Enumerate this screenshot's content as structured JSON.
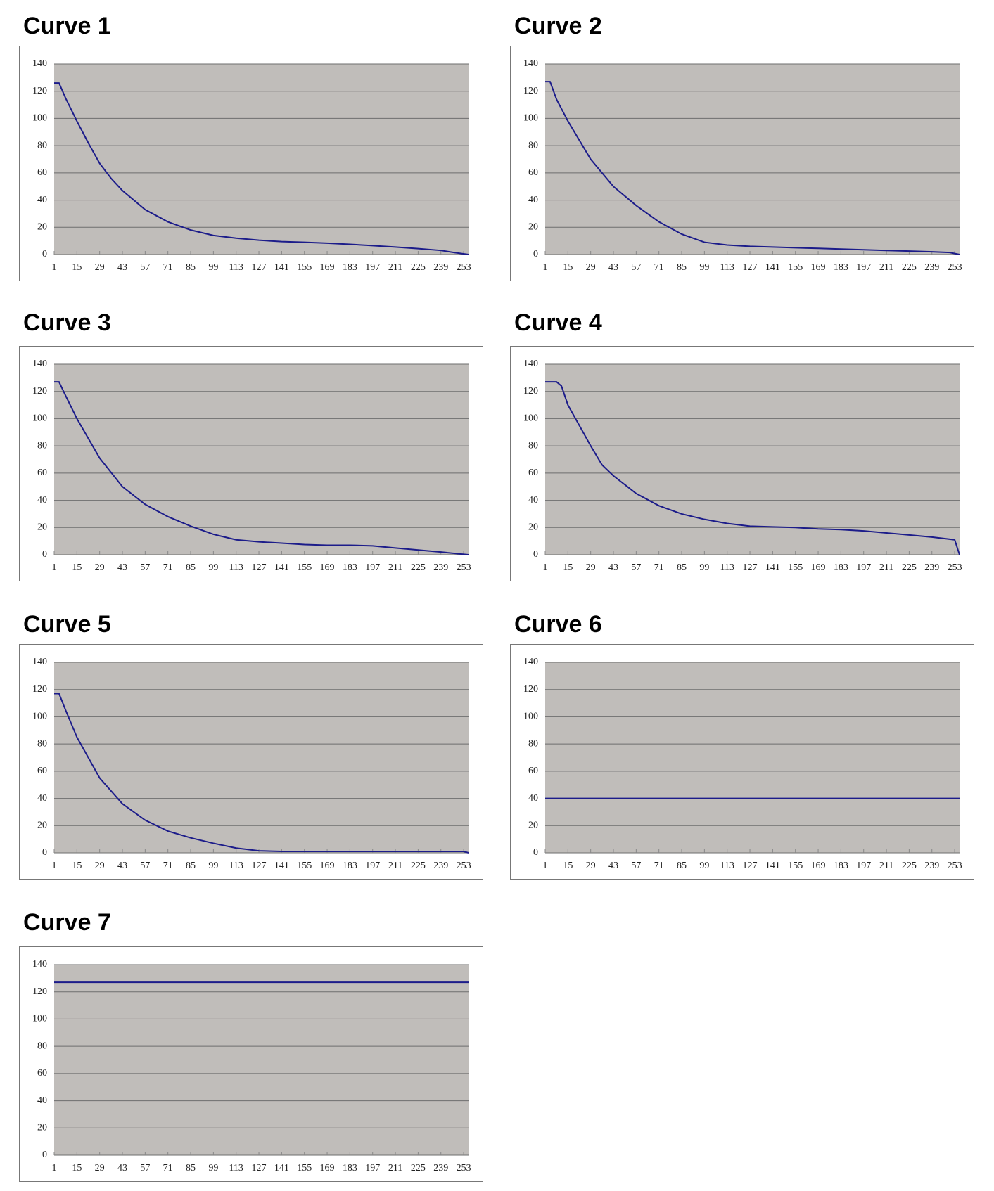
{
  "chart_data": [
    {
      "type": "line",
      "title": "Curve 1",
      "color": "#1c1c8a",
      "grid": true,
      "x": [
        1,
        4,
        8,
        15,
        22,
        29,
        36,
        43,
        57,
        71,
        85,
        99,
        113,
        127,
        141,
        155,
        169,
        183,
        197,
        211,
        225,
        239,
        247,
        256
      ],
      "values": [
        126,
        126,
        115,
        98,
        82,
        67,
        56,
        47,
        33,
        24,
        18,
        14,
        12,
        10.5,
        9.5,
        9,
        8.3,
        7.5,
        6.5,
        5.5,
        4.3,
        3,
        1.5,
        0
      ],
      "xlim": [
        1,
        256
      ],
      "xticks": [
        1,
        15,
        29,
        43,
        57,
        71,
        85,
        99,
        113,
        127,
        141,
        155,
        169,
        183,
        197,
        211,
        225,
        239,
        253
      ],
      "ylim": [
        0,
        140
      ],
      "yticks": [
        0,
        20,
        40,
        60,
        80,
        100,
        120,
        140
      ]
    },
    {
      "type": "line",
      "title": "Curve 2",
      "color": "#1c1c8a",
      "grid": true,
      "x": [
        1,
        4,
        8,
        15,
        29,
        43,
        57,
        71,
        85,
        99,
        113,
        127,
        141,
        155,
        169,
        183,
        197,
        211,
        225,
        239,
        250,
        256
      ],
      "values": [
        127,
        127,
        114,
        98,
        70,
        50,
        36,
        24,
        15,
        9,
        7,
        6,
        5.5,
        5,
        4.5,
        4,
        3.5,
        3,
        2.5,
        2,
        1.5,
        0
      ],
      "xlim": [
        1,
        256
      ],
      "xticks": [
        1,
        15,
        29,
        43,
        57,
        71,
        85,
        99,
        113,
        127,
        141,
        155,
        169,
        183,
        197,
        211,
        225,
        239,
        253
      ],
      "ylim": [
        0,
        140
      ],
      "yticks": [
        0,
        20,
        40,
        60,
        80,
        100,
        120,
        140
      ]
    },
    {
      "type": "line",
      "title": "Curve 3",
      "color": "#1c1c8a",
      "grid": true,
      "x": [
        1,
        4,
        8,
        15,
        29,
        43,
        57,
        71,
        85,
        99,
        113,
        127,
        141,
        155,
        169,
        183,
        197,
        211,
        225,
        239,
        256
      ],
      "values": [
        127,
        127,
        117,
        100,
        71,
        50,
        37,
        28,
        21,
        15,
        11,
        9.5,
        8.5,
        7.5,
        7,
        7,
        6.5,
        5,
        3.5,
        2,
        0
      ],
      "xlim": [
        1,
        256
      ],
      "xticks": [
        1,
        15,
        29,
        43,
        57,
        71,
        85,
        99,
        113,
        127,
        141,
        155,
        169,
        183,
        197,
        211,
        225,
        239,
        253
      ],
      "ylim": [
        0,
        140
      ],
      "yticks": [
        0,
        20,
        40,
        60,
        80,
        100,
        120,
        140
      ]
    },
    {
      "type": "line",
      "title": "Curve 4",
      "color": "#1c1c8a",
      "grid": true,
      "x": [
        1,
        8,
        11,
        15,
        29,
        36,
        43,
        57,
        71,
        85,
        99,
        113,
        127,
        141,
        155,
        169,
        183,
        197,
        211,
        225,
        239,
        253,
        256
      ],
      "values": [
        127,
        127,
        124,
        110,
        80,
        66,
        58,
        45,
        36,
        30,
        26,
        23,
        21,
        20.5,
        20,
        19,
        18.5,
        17.5,
        16,
        14.5,
        13,
        11,
        0
      ],
      "xlim": [
        1,
        256
      ],
      "xticks": [
        1,
        15,
        29,
        43,
        57,
        71,
        85,
        99,
        113,
        127,
        141,
        155,
        169,
        183,
        197,
        211,
        225,
        239,
        253
      ],
      "ylim": [
        0,
        140
      ],
      "yticks": [
        0,
        20,
        40,
        60,
        80,
        100,
        120,
        140
      ]
    },
    {
      "type": "line",
      "title": "Curve 5",
      "color": "#1c1c8a",
      "grid": true,
      "x": [
        1,
        4,
        8,
        15,
        29,
        43,
        57,
        71,
        85,
        99,
        113,
        127,
        141,
        155,
        197,
        253,
        256
      ],
      "values": [
        117,
        117,
        105,
        85,
        55,
        36,
        24,
        16,
        11,
        7,
        3.5,
        1.5,
        1,
        1,
        1,
        1,
        0
      ],
      "xlim": [
        1,
        256
      ],
      "xticks": [
        1,
        15,
        29,
        43,
        57,
        71,
        85,
        99,
        113,
        127,
        141,
        155,
        169,
        183,
        197,
        211,
        225,
        239,
        253
      ],
      "ylim": [
        0,
        140
      ],
      "yticks": [
        0,
        20,
        40,
        60,
        80,
        100,
        120,
        140
      ]
    },
    {
      "type": "line",
      "title": "Curve 6",
      "color": "#1c1c8a",
      "grid": true,
      "x": [
        1,
        256
      ],
      "values": [
        40,
        40
      ],
      "xlim": [
        1,
        256
      ],
      "xticks": [
        1,
        15,
        29,
        43,
        57,
        71,
        85,
        99,
        113,
        127,
        141,
        155,
        169,
        183,
        197,
        211,
        225,
        239,
        253
      ],
      "ylim": [
        0,
        140
      ],
      "yticks": [
        0,
        20,
        40,
        60,
        80,
        100,
        120,
        140
      ]
    },
    {
      "type": "line",
      "title": "Curve 7",
      "color": "#1c1c8a",
      "grid": true,
      "x": [
        1,
        256
      ],
      "values": [
        127,
        127
      ],
      "xlim": [
        1,
        256
      ],
      "xticks": [
        1,
        15,
        29,
        43,
        57,
        71,
        85,
        99,
        113,
        127,
        141,
        155,
        169,
        183,
        197,
        211,
        225,
        239,
        253
      ],
      "ylim": [
        0,
        140
      ],
      "yticks": [
        0,
        20,
        40,
        60,
        80,
        100,
        120,
        140
      ]
    }
  ]
}
